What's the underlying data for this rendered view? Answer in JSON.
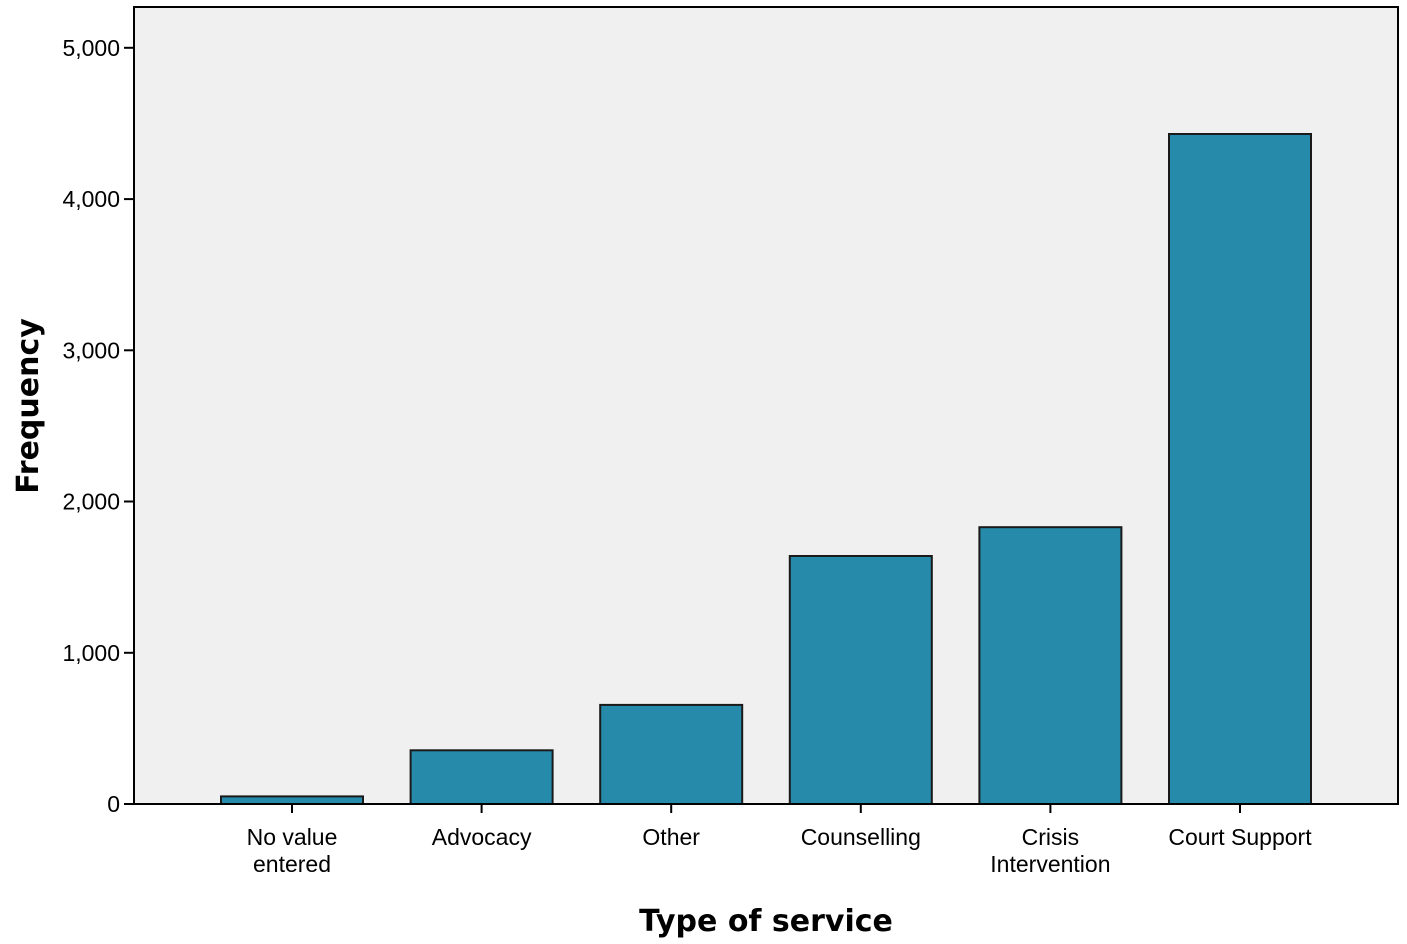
{
  "chart_data": {
    "type": "bar",
    "categories": [
      "No value entered",
      "Advocacy",
      "Other",
      "Counselling",
      "Crisis Intervention",
      "Court Support"
    ],
    "category_lines": [
      [
        "No value",
        "entered"
      ],
      [
        "Advocacy"
      ],
      [
        "Other"
      ],
      [
        "Counselling"
      ],
      [
        "Crisis",
        "Intervention"
      ],
      [
        "Court Support"
      ]
    ],
    "values": [
      50,
      355,
      655,
      1640,
      1830,
      4430
    ],
    "xlabel": "Type of service",
    "ylabel": "Frequency",
    "ylim": [
      0,
      5270
    ],
    "yticks": [
      0,
      1000,
      2000,
      3000,
      4000,
      5000
    ],
    "ytick_labels": [
      "0",
      "1,000",
      "2,000",
      "3,000",
      "4,000",
      "5,000"
    ],
    "grid": false,
    "legend": "none",
    "colors": {
      "bar_fill": "#268aaa",
      "bar_stroke": "#1a1a1a",
      "plot_background": "#f0f0f0",
      "axis": "#000000"
    }
  }
}
